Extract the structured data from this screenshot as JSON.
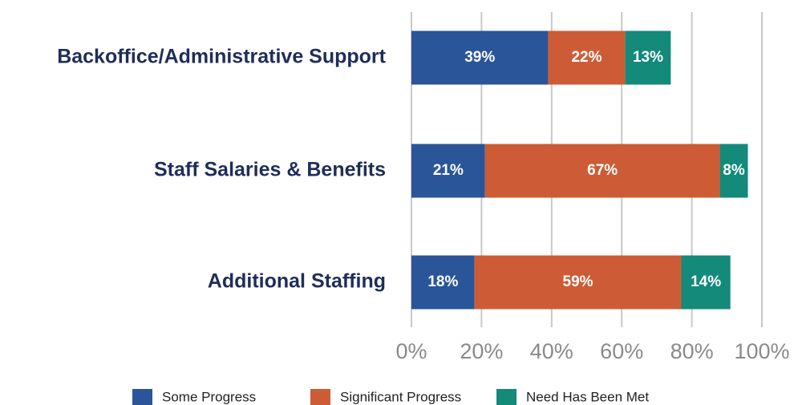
{
  "chart_data": {
    "type": "bar",
    "orientation": "horizontal",
    "stacked": true,
    "grid": true,
    "legend": "bottom",
    "categories": [
      "Backoffice/Administrative Support",
      "Staff Salaries & Benefits",
      "Additional Staffing"
    ],
    "series": [
      {
        "name": "Some Progress",
        "color": "#2a5599",
        "values": [
          39,
          21,
          18
        ],
        "value_labels": [
          "39%",
          "21%",
          "18%"
        ]
      },
      {
        "name": "Significant Progress",
        "color": "#cd5c36",
        "values": [
          22,
          67,
          59
        ],
        "value_labels": [
          "22%",
          "67%",
          "59%"
        ]
      },
      {
        "name": "Need Has Been Met",
        "color": "#138a7a",
        "values": [
          13,
          8,
          14
        ],
        "value_labels": [
          "13%",
          "8%",
          "14%"
        ]
      }
    ],
    "xlim": [
      0,
      100
    ],
    "xticks": [
      {
        "value": 0,
        "label": "0%"
      },
      {
        "value": 20,
        "label": "20%"
      },
      {
        "value": 40,
        "label": "40%"
      },
      {
        "value": 60,
        "label": "60%"
      },
      {
        "value": 80,
        "label": "80%"
      },
      {
        "value": 100,
        "label": "100%"
      }
    ]
  }
}
